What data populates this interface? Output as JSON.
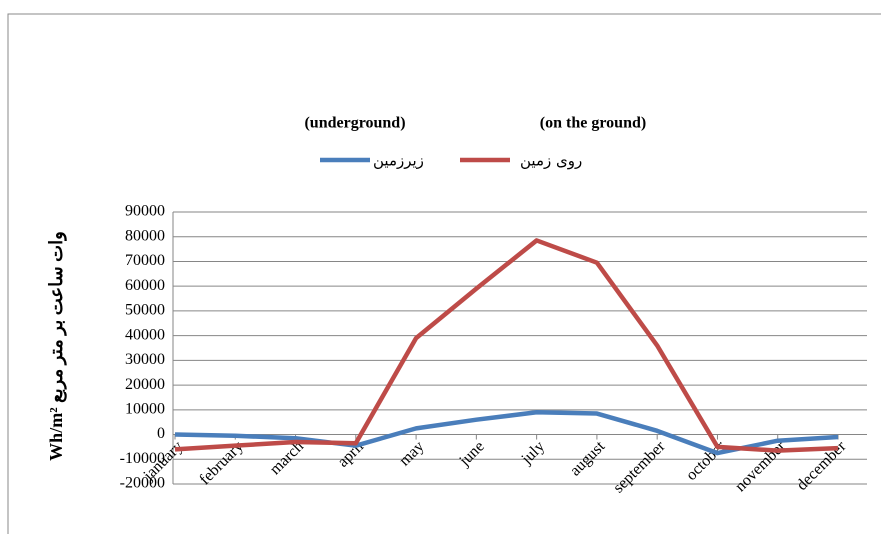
{
  "chart_data": {
    "type": "line",
    "annotations": [
      "(underground)",
      "(on the ground)"
    ],
    "y_label": "Wh/m² وات ساعت بر متر مربع",
    "categories": [
      "january",
      "february",
      "march",
      "april",
      "may",
      "june",
      "july",
      "august",
      "september",
      "october",
      "november",
      "december"
    ],
    "series": [
      {
        "name": "زیرزمین",
        "color": "#4a7ebb",
        "values": [
          0,
          -500,
          -1500,
          -4500,
          2500,
          6000,
          9000,
          8500,
          1500,
          -7500,
          -2500,
          -1000
        ]
      },
      {
        "name": "روی زمین",
        "color": "#be4b48",
        "values": [
          -6000,
          -4500,
          -3000,
          -3500,
          39000,
          59000,
          78500,
          69500,
          36000,
          -5000,
          -6500,
          -5500
        ]
      }
    ],
    "ylim": [
      -20000,
      90000
    ],
    "yticks": [
      -20000,
      -10000,
      0,
      10000,
      20000,
      30000,
      40000,
      50000,
      60000,
      70000,
      80000,
      90000
    ],
    "grid": true
  }
}
